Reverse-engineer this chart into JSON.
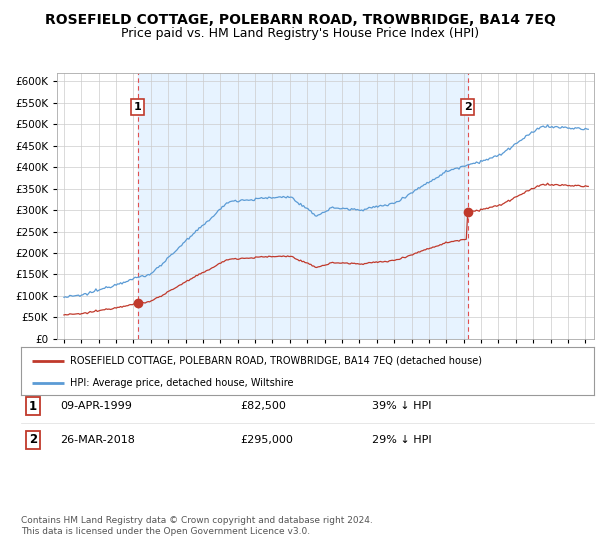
{
  "title": "ROSEFIELD COTTAGE, POLEBARN ROAD, TROWBRIDGE, BA14 7EQ",
  "subtitle": "Price paid vs. HM Land Registry's House Price Index (HPI)",
  "title_fontsize": 10,
  "subtitle_fontsize": 9,
  "background_color": "#ffffff",
  "chart_bg_color": "#ffffff",
  "grid_color": "#cccccc",
  "purchase1": {
    "date_year": 1999.25,
    "price": 82500,
    "label": "1"
  },
  "purchase2": {
    "date_year": 2018.23,
    "price": 295000,
    "label": "2"
  },
  "legend_entry1": "ROSEFIELD COTTAGE, POLEBARN ROAD, TROWBRIDGE, BA14 7EQ (detached house)",
  "legend_entry2": "HPI: Average price, detached house, Wiltshire",
  "table_rows": [
    {
      "num": "1",
      "date": "09-APR-1999",
      "price": "£82,500",
      "hpi": "39% ↓ HPI"
    },
    {
      "num": "2",
      "date": "26-MAR-2018",
      "price": "£295,000",
      "hpi": "29% ↓ HPI"
    }
  ],
  "footer": "Contains HM Land Registry data © Crown copyright and database right 2024.\nThis data is licensed under the Open Government Licence v3.0.",
  "ylim": [
    0,
    620000
  ],
  "yticks": [
    0,
    50000,
    100000,
    150000,
    200000,
    250000,
    300000,
    350000,
    400000,
    450000,
    500000,
    550000,
    600000
  ],
  "hpi_color": "#5b9bd5",
  "price_color": "#c0392b",
  "dashed_line_color": "#e05050",
  "purchase_marker_color": "#c0392b",
  "shade_color": "#ddeeff",
  "label_box_color": "#c0392b"
}
